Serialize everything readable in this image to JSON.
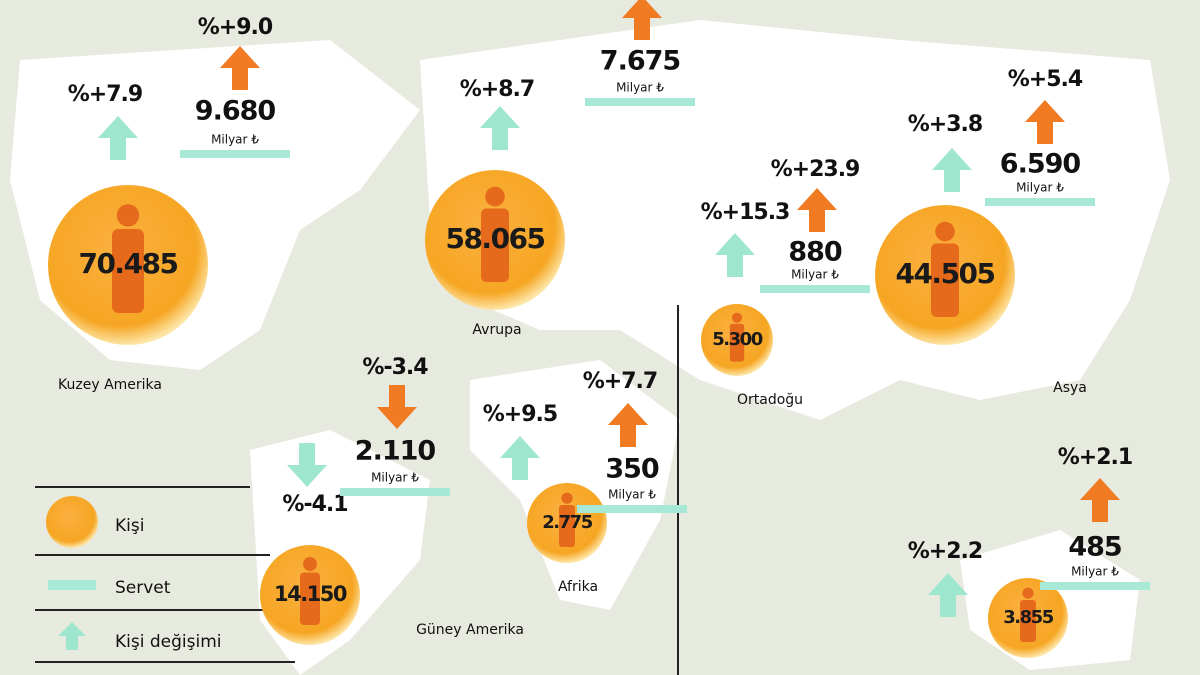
{
  "regions": [
    {
      "name": "Kuzey Amerika",
      "people": "70.485",
      "people_change": "%+7.9",
      "people_trend": "up",
      "wealth": "9.680",
      "wealth_unit": "Milyar ₺",
      "wealth_change": "%+9.0",
      "wealth_trend": "up"
    },
    {
      "name": "Avrupa",
      "people": "58.065",
      "people_change": "%+8.7",
      "people_trend": "up",
      "wealth": "7.675",
      "wealth_unit": "Milyar ₺",
      "wealth_trend": "up"
    },
    {
      "name": "Ortadoğu",
      "people": "5.300",
      "people_change": "%+15.3",
      "people_trend": "up",
      "wealth": "880",
      "wealth_unit": "Milyar ₺",
      "wealth_change": "%+23.9",
      "wealth_trend": "up"
    },
    {
      "name": "Asya",
      "people": "44.505",
      "people_change": "%+3.8",
      "people_trend": "up",
      "wealth": "6.590",
      "wealth_unit": "Milyar ₺",
      "wealth_change": "%+5.4",
      "wealth_trend": "up"
    },
    {
      "name": "Güney Amerika",
      "people": "14.150",
      "people_change": "%-4.1",
      "people_trend": "down",
      "wealth": "2.110",
      "wealth_unit": "Milyar ₺",
      "wealth_change": "%-3.4",
      "wealth_trend": "down"
    },
    {
      "name": "Afrika",
      "people": "2.775",
      "people_change": "%+9.5",
      "people_trend": "up",
      "wealth": "350",
      "wealth_unit": "Milyar ₺",
      "wealth_change": "%+7.7",
      "wealth_trend": "up"
    },
    {
      "people": "3.855",
      "people_change": "%+2.2",
      "people_trend": "up",
      "wealth": "485",
      "wealth_unit": "Milyar ₺",
      "wealth_change": "%+2.1",
      "wealth_trend": "up"
    }
  ],
  "legend": [
    "Kişi",
    "Servet",
    "Kişi değişimi"
  ]
}
